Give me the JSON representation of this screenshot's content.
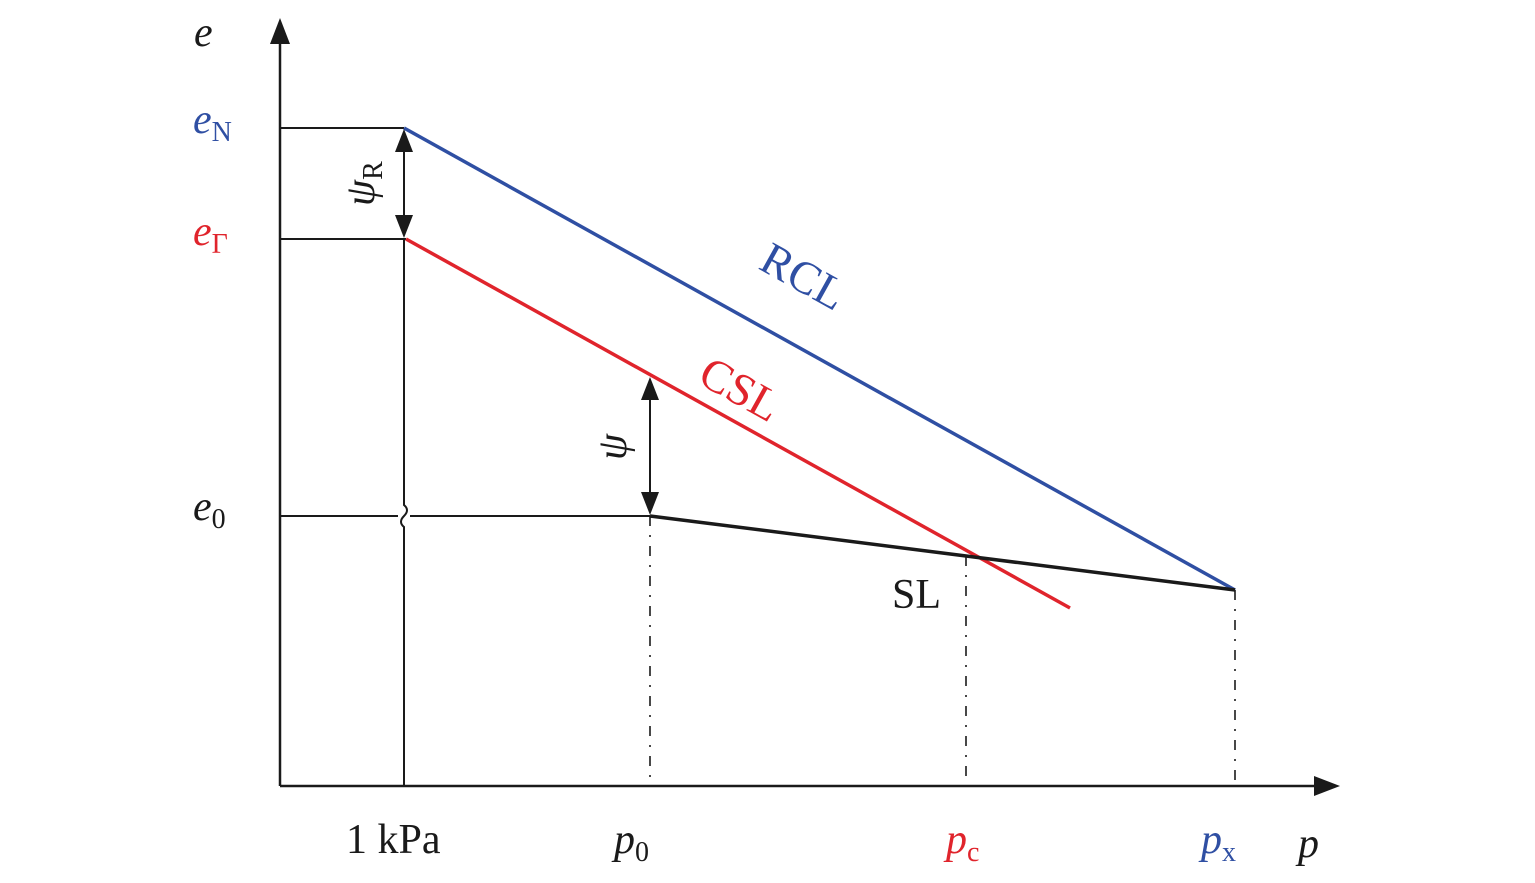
{
  "colors": {
    "axis": "#1a1a1a",
    "rcl": "#2f4fa3",
    "csl": "#e0242c",
    "sl": "#1a1a1a"
  },
  "axes": {
    "y_var": "e",
    "x_var": "p"
  },
  "y_labels": {
    "eN": {
      "main": "e",
      "sub": "N"
    },
    "eGamma": {
      "main": "e",
      "sub": "Γ"
    },
    "e0": {
      "main": "e",
      "sub": "0"
    }
  },
  "x_labels": {
    "one_kpa": "1 kPa",
    "p0": {
      "main": "p",
      "sub": "0"
    },
    "pc": {
      "main": "p",
      "sub": "c"
    },
    "px": {
      "main": "p",
      "sub": "x"
    }
  },
  "line_labels": {
    "rcl": "RCL",
    "csl": "CSL",
    "sl": "SL"
  },
  "state_params": {
    "psi_r": {
      "main": "ψ",
      "sub": "R"
    },
    "psi": "ψ"
  }
}
